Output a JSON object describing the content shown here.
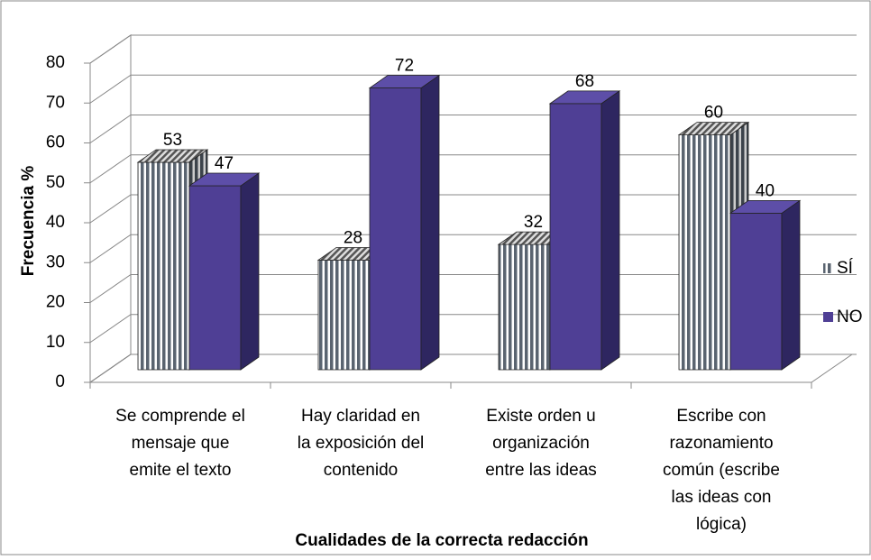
{
  "chart_data": {
    "type": "bar3d",
    "categories": [
      [
        "Se comprende el",
        "mensaje que",
        "emite el  texto"
      ],
      [
        "Hay claridad en",
        "la exposición del",
        "contenido"
      ],
      [
        "Existe  orden u",
        "organización",
        "entre las ideas"
      ],
      [
        "Escribe con",
        "razonamiento",
        "común (escribe",
        "las ideas con",
        "lógica)"
      ]
    ],
    "series": [
      {
        "name": "SÍ",
        "color": "#5a6470",
        "values": [
          53,
          28,
          32,
          60
        ]
      },
      {
        "name": "NO",
        "color": "#4f3f95",
        "values": [
          47,
          72,
          68,
          40
        ]
      }
    ],
    "ylim": [
      0,
      80
    ],
    "yticks": [
      0,
      10,
      20,
      30,
      40,
      50,
      60,
      70,
      80
    ],
    "ylabel": "Frecuencia %",
    "xlabel": "Cualidades de la correcta redacción",
    "grid": true,
    "legend": "right"
  }
}
